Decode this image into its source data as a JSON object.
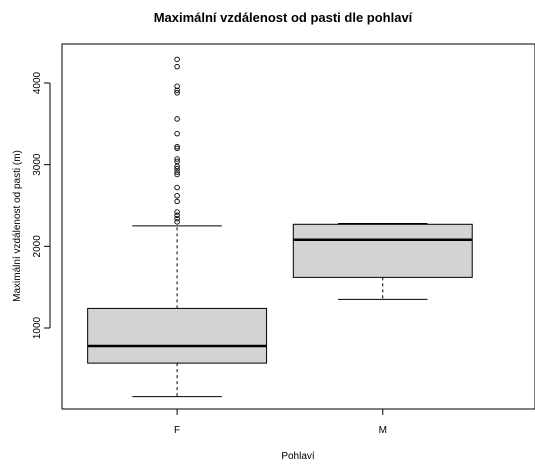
{
  "chart_data": {
    "type": "boxplot",
    "title": "Maximální vzdálenost od pasti dle pohlaví",
    "xlabel": "Pohlaví",
    "ylabel": "Maximální vzdálenost od pasti (m)",
    "ylim": [
      0,
      4400
    ],
    "yticks": [
      1000,
      2000,
      3000,
      4000
    ],
    "grid": false,
    "categories": [
      "F",
      "M"
    ],
    "boxes": [
      {
        "category": "F",
        "whisker_low": 160,
        "q1": 570,
        "median": 780,
        "q3": 1240,
        "whisker_high": 2250,
        "outliers": [
          2300,
          2340,
          2380,
          2420,
          2550,
          2620,
          2720,
          2880,
          2910,
          2950,
          2980,
          3040,
          3070,
          3200,
          3220,
          3380,
          3560,
          3880,
          3910,
          3960,
          4200,
          4290
        ]
      },
      {
        "category": "M",
        "whisker_low": 1350,
        "q1": 1620,
        "median": 2080,
        "q3": 2270,
        "whisker_high": 2280,
        "outliers": []
      }
    ],
    "box_fill": "#d3d3d3",
    "line_color": "#000000"
  }
}
